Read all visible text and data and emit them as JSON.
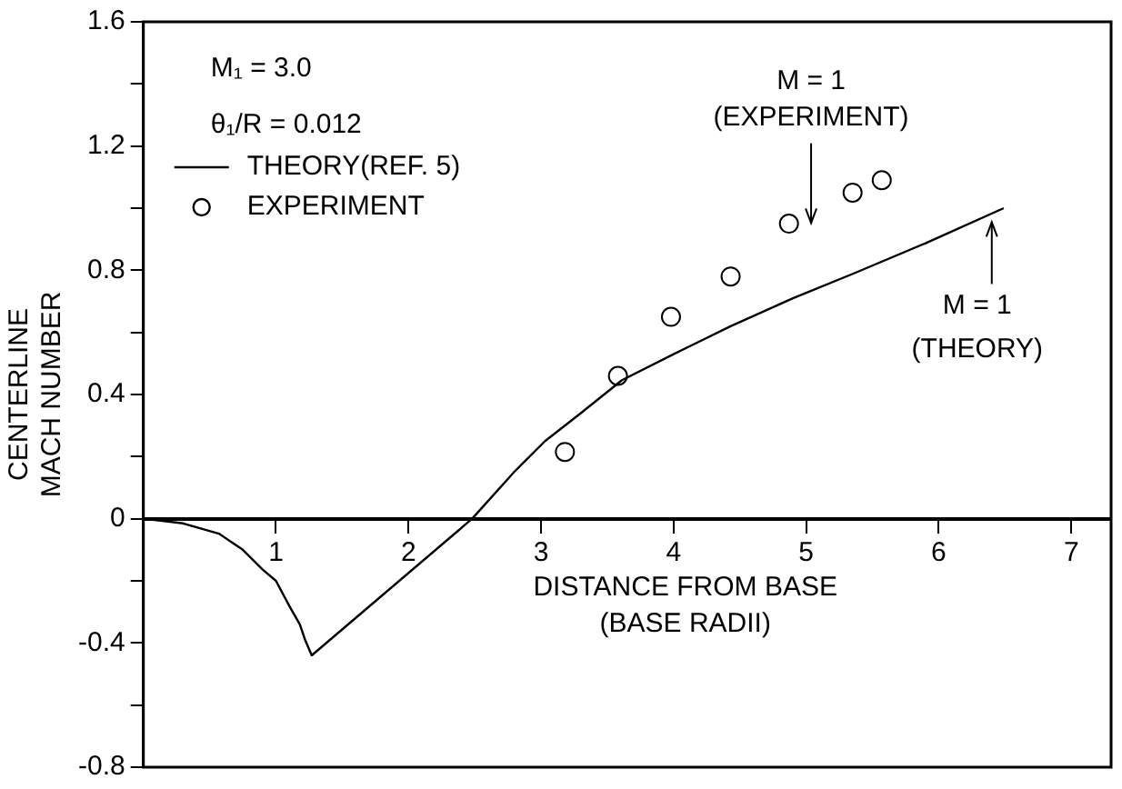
{
  "chart_data": {
    "type": "line",
    "xlabel": "DISTANCE FROM BASE\n(BASE RADII)",
    "ylabel": "CENTERLINE\nMACH NUMBER",
    "xlim": [
      0,
      7.3
    ],
    "ylim": [
      -0.8,
      1.6
    ],
    "xticks": [
      {
        "value": 0,
        "label": null
      },
      1,
      2,
      3,
      4,
      5,
      6,
      7
    ],
    "yticks": [
      -0.8,
      {
        "value": -0.6,
        "label": null
      },
      -0.4,
      {
        "value": -0.2,
        "label": null
      },
      0,
      {
        "value": 0.2,
        "label": null
      },
      0.4,
      {
        "value": 0.6,
        "label": null
      },
      0.8,
      {
        "value": 1.0,
        "label": null
      },
      1.2,
      {
        "value": 1.4,
        "label": null
      },
      1.6
    ],
    "grid": false,
    "legend": "top left",
    "annotations": [
      "M₁ = 3.0",
      "θ₁/R = 0.012",
      "M = 1\n(EXPERIMENT)",
      {
        "text": "M = 1\n(THEORY)",
        "x": 6.4,
        "y": 0.99
      }
    ],
    "series": [
      {
        "name": "THEORY(REF. 5)",
        "marker": "none",
        "color": "#000000",
        "x": [
          0,
          0.3,
          0.57,
          0.75,
          0.9,
          1.0,
          1.1,
          1.18,
          1.22,
          1.27,
          2.48,
          2.8,
          3.03,
          3.3,
          3.61,
          4.0,
          4.43,
          4.9,
          5.36,
          5.9,
          6.49
        ],
        "values": [
          0,
          -0.015,
          -0.048,
          -0.1,
          -0.164,
          -0.2,
          -0.28,
          -0.34,
          -0.39,
          -0.44,
          0,
          0.152,
          0.25,
          0.34,
          0.446,
          0.53,
          0.62,
          0.71,
          0.79,
          0.887,
          1.0
        ]
      },
      {
        "name": "EXPERIMENT",
        "type": "scatter",
        "marker": "circle",
        "color": "#000000",
        "x": [
          3.18,
          3.58,
          3.98,
          4.43,
          4.87,
          5.35,
          5.57
        ],
        "values": [
          0.215,
          0.46,
          0.65,
          0.78,
          0.95,
          1.05,
          1.09
        ]
      }
    ]
  }
}
